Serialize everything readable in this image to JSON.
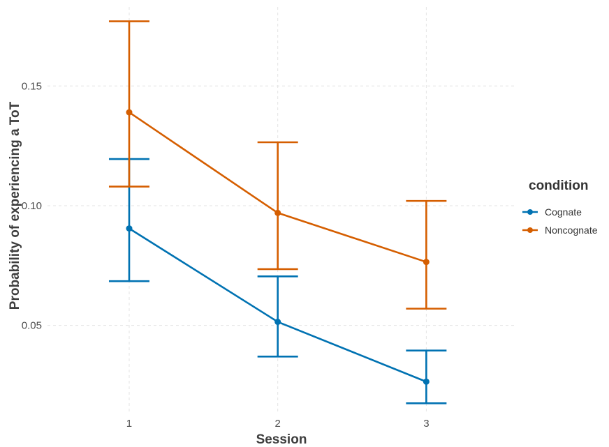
{
  "chart_data": {
    "type": "line",
    "xlabel": "Session",
    "ylabel": "Probability of experiencing a ToT",
    "categories": [
      "1",
      "2",
      "3"
    ],
    "x": [
      1,
      2,
      3
    ],
    "xlim": [
      0.45,
      3.6
    ],
    "ylim": [
      0.0135,
      0.183
    ],
    "y_ticks": [
      0.05,
      0.1,
      0.15
    ],
    "y_tick_labels": [
      "0.05",
      "0.10",
      "0.15"
    ],
    "grid": true,
    "legend": {
      "title": "condition",
      "placement": "right",
      "entries": [
        "Cognate",
        "Noncognate"
      ]
    },
    "series": [
      {
        "name": "Cognate",
        "color": "#0072B2",
        "values": [
          0.0905,
          0.0515,
          0.0265
        ],
        "lower": [
          0.0685,
          0.037,
          0.0175
        ],
        "upper": [
          0.1195,
          0.0705,
          0.0395
        ]
      },
      {
        "name": "Noncognate",
        "color": "#D55E00",
        "values": [
          0.139,
          0.097,
          0.0765
        ],
        "lower": [
          0.108,
          0.0735,
          0.057
        ],
        "upper": [
          0.177,
          0.1265,
          0.102
        ]
      }
    ]
  }
}
